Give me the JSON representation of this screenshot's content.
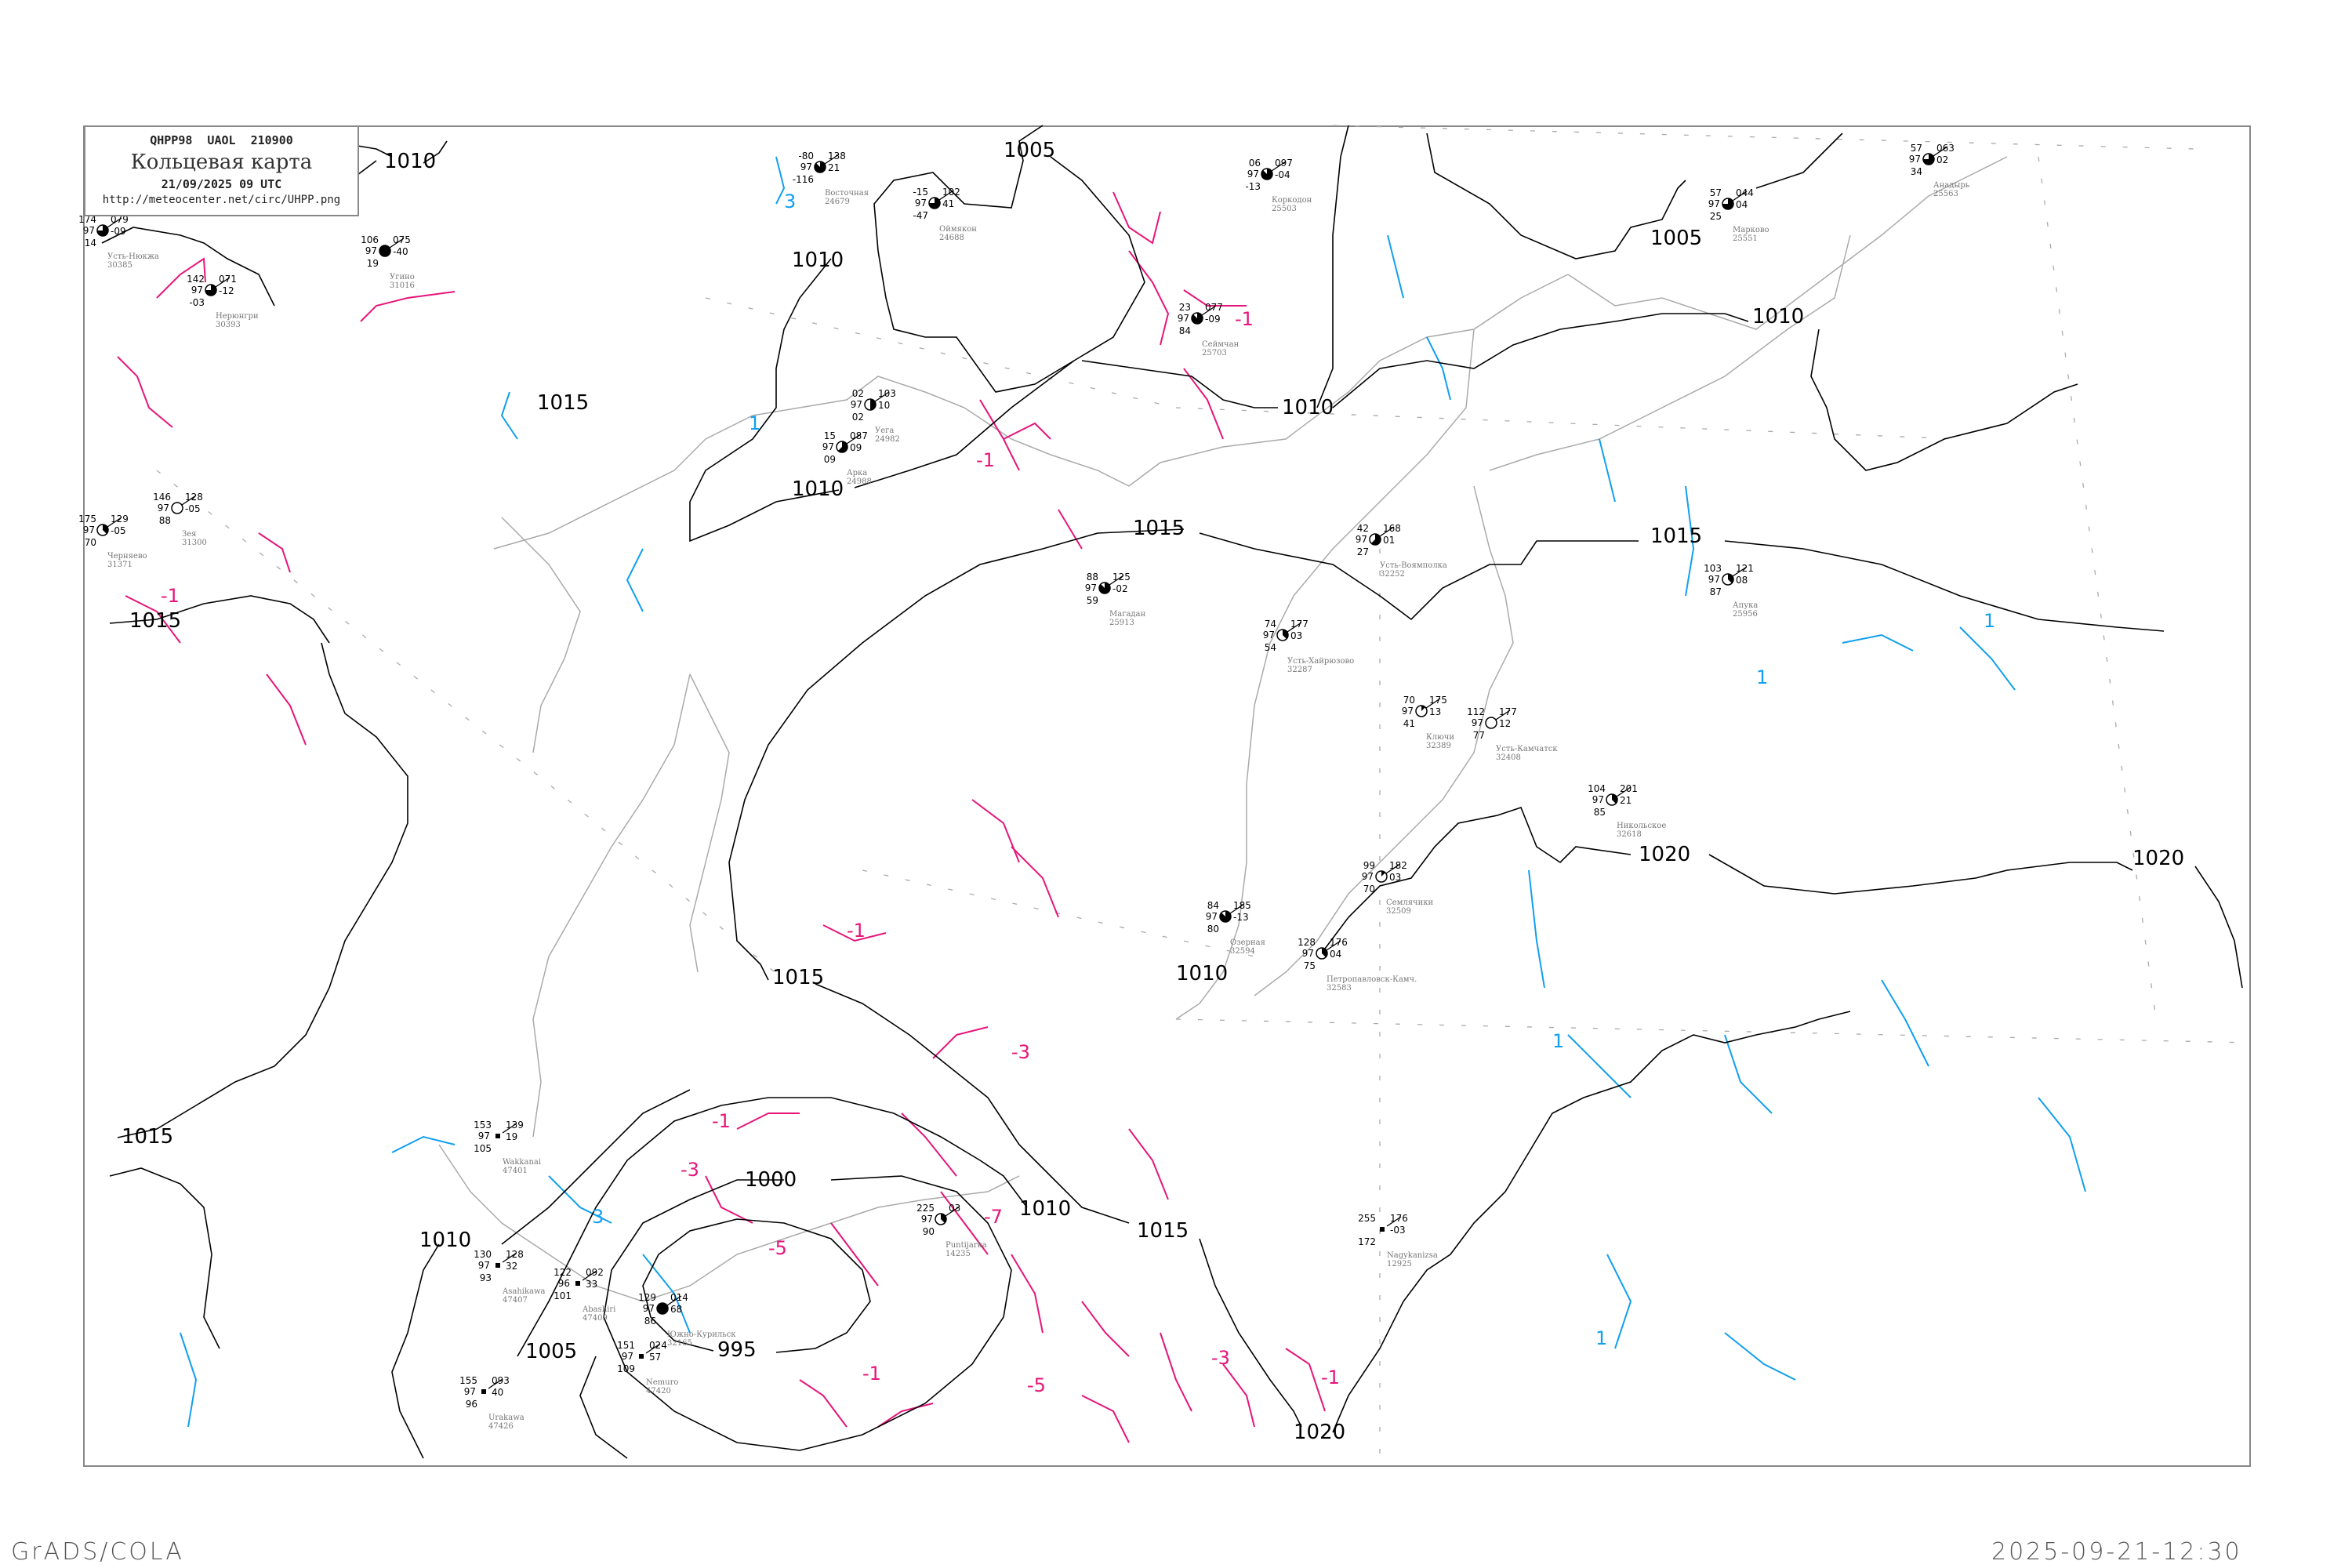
{
  "legend": {
    "code_line": "QHPP98 UAOL 210900",
    "title": "Кольцевая карта",
    "datetime": "21/09/2025 09 UTC",
    "url": "http://meteocenter.net/circ/UHPP.png"
  },
  "footer": {
    "software": "GrADS/COLA",
    "generated": "2025-09-21-12:30"
  },
  "colors": {
    "isobar": "#000000",
    "negative_isotherm": "#e6157a",
    "positive_isotherm": "#119ff0",
    "coastline": "#aaaaaa",
    "precip_marker": "#22cc44"
  },
  "isobar_labels": [
    "1010",
    "1005",
    "1010",
    "1015",
    "1010",
    "1010",
    "1015",
    "1010",
    "1005",
    "1015",
    "1015",
    "1015",
    "1015",
    "1020",
    "1020",
    "1000",
    "995",
    "1005",
    "1010",
    "1015",
    "1020",
    "1010",
    "1010"
  ],
  "isotherm_labels": {
    "negative": [
      "-1",
      "-1",
      "-1",
      "-1",
      "-3",
      "-3",
      "-5",
      "-7",
      "-5",
      "-3",
      "-1",
      "-1",
      "-1"
    ],
    "positive": [
      "3",
      "1",
      "3",
      "1",
      "1",
      "1",
      "1"
    ]
  },
  "stations": [
    {
      "name": "Усть-Нюкжа",
      "id": "30385",
      "t": "174",
      "p": "079",
      "v": "97",
      "tend": "-09",
      "td": "14",
      "cover": 6
    },
    {
      "name": "Нерюнгри",
      "id": "30393",
      "t": "142",
      "p": "071",
      "v": "97",
      "tend": "-12",
      "td": "-03",
      "cover": 6
    },
    {
      "name": "Угино",
      "id": "31016",
      "t": "106",
      "p": "075",
      "v": "97",
      "tend": "-40",
      "td": "19",
      "cover": 8
    },
    {
      "name": "Зея",
      "id": "31300",
      "t": "146",
      "p": "128",
      "v": "97",
      "tend": "-05",
      "td": "88",
      "cover": 0
    },
    {
      "name": "Черняево",
      "id": "31371",
      "t": "175",
      "p": "129",
      "v": "97",
      "tend": "-05",
      "td": "70",
      "cover": 3
    },
    {
      "name": "Восточная",
      "id": "24679",
      "t": "-80",
      "p": "138",
      "v": "97",
      "tend": "21",
      "td": "-116",
      "cover": 7
    },
    {
      "name": "Оймякон",
      "id": "24688",
      "t": "-15",
      "p": "102",
      "v": "97",
      "tend": "41",
      "td": "-47",
      "cover": 6
    },
    {
      "name": "Коркодон",
      "id": "25503",
      "t": "06",
      "p": "097",
      "v": "97",
      "tend": "-04",
      "td": "-13",
      "cover": 7
    },
    {
      "name": "Сеймчан",
      "id": "25703",
      "t": "23",
      "p": "077",
      "v": "97",
      "tend": "-09",
      "td": "84",
      "cover": 7
    },
    {
      "name": "Уега",
      "id": "24982",
      "t": "02",
      "p": "103",
      "v": "97",
      "tend": "10",
      "td": "02",
      "cover": 4
    },
    {
      "name": "Арка",
      "id": "24988",
      "t": "15",
      "p": "087",
      "v": "97",
      "tend": "09",
      "td": "09",
      "cover": 5
    },
    {
      "name": "Магадан",
      "id": "25913",
      "t": "88",
      "p": "125",
      "v": "97",
      "tend": "-02",
      "td": "59",
      "cover": 7
    },
    {
      "name": "Марково",
      "id": "25551",
      "t": "57",
      "p": "044",
      "v": "97",
      "tend": "04",
      "td": "25",
      "cover": 6
    },
    {
      "name": "Анадырь",
      "id": "25563",
      "t": "57",
      "p": "063",
      "v": "97",
      "tend": "02",
      "td": "34",
      "cover": 6
    },
    {
      "name": "Апука",
      "id": "25956",
      "t": "103",
      "p": "121",
      "v": "97",
      "tend": "08",
      "td": "87",
      "cover": 3
    },
    {
      "name": "Усть-Воямполка",
      "id": "32252",
      "t": "42",
      "p": "168",
      "v": "97",
      "tend": "01",
      "td": "27",
      "cover": 5
    },
    {
      "name": "Усть-Хайрюзово",
      "id": "32287",
      "t": "74",
      "p": "177",
      "v": "97",
      "tend": "03",
      "td": "54",
      "cover": 3
    },
    {
      "name": "Ключи",
      "id": "32389",
      "t": "70",
      "p": "175",
      "v": "97",
      "tend": "13",
      "td": "41",
      "cover": 1
    },
    {
      "name": "Усть-Камчатск",
      "id": "32408",
      "t": "112",
      "p": "177",
      "v": "97",
      "tend": "12",
      "td": "77",
      "cover": 0
    },
    {
      "name": "Никольское",
      "id": "32618",
      "t": "104",
      "p": "201",
      "v": "97",
      "tend": "21",
      "td": "85",
      "cover": 3
    },
    {
      "name": "Семлячики",
      "id": "32509",
      "t": "99",
      "p": "182",
      "v": "97",
      "tend": "03",
      "td": "70",
      "cover": 1
    },
    {
      "name": "Петропавловск-Камч.",
      "id": "32583",
      "t": "128",
      "p": "176",
      "v": "97",
      "tend": "04",
      "td": "75",
      "cover": 3
    },
    {
      "name": "Озерная",
      "id": "32594",
      "t": "84",
      "p": "185",
      "v": "97",
      "tend": "-13",
      "td": "80",
      "cover": 7
    },
    {
      "name": "Puntijarka",
      "id": "14235",
      "t": "225",
      "p": "03",
      "v": "97",
      "tend": "",
      "td": "90",
      "cover": 3
    },
    {
      "name": "Южно-Курильск",
      "id": "32165",
      "t": "129",
      "p": "014",
      "v": "97",
      "tend": "68",
      "td": "86",
      "cover": 8
    },
    {
      "name": "Wakkanai",
      "id": "47401",
      "t": "153",
      "p": "139",
      "v": "97",
      "tend": "19",
      "td": "105",
      "cover": -1
    },
    {
      "name": "Asahikawa",
      "id": "47407",
      "t": "130",
      "p": "128",
      "v": "97",
      "tend": "32",
      "td": "93",
      "cover": -1
    },
    {
      "name": "Abashiri",
      "id": "47409",
      "t": "122",
      "p": "092",
      "v": "96",
      "tend": "33",
      "td": "101",
      "cover": -1
    },
    {
      "name": "Nemuro",
      "id": "47420",
      "t": "151",
      "p": "024",
      "v": "97",
      "tend": "57",
      "td": "109",
      "cover": -1
    },
    {
      "name": "Urakawa",
      "id": "47426",
      "t": "155",
      "p": "093",
      "v": "97",
      "tend": "40",
      "td": "96",
      "cover": -1
    },
    {
      "name": "Nagykanizsa",
      "id": "12925",
      "t": "255",
      "p": "176",
      "v": "",
      "tend": "-03",
      "td": "172",
      "cover": -1
    }
  ]
}
